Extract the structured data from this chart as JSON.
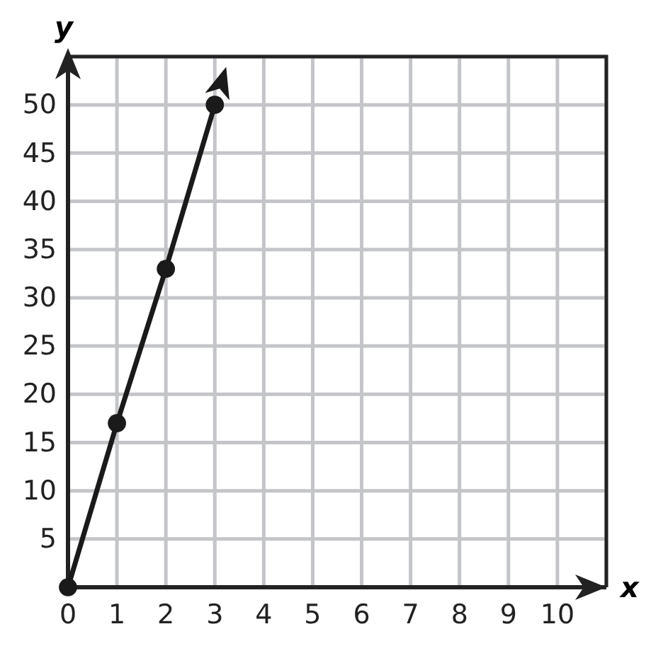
{
  "chart_data": {
    "type": "line",
    "xlabel": "x",
    "ylabel": "y",
    "x": [
      0,
      1,
      2,
      3
    ],
    "series": [
      {
        "color": "#1a1a1a",
        "values": [
          0,
          17,
          33,
          50
        ]
      }
    ],
    "xlim": [
      0,
      11
    ],
    "ylim": [
      0,
      55
    ],
    "xticks": [
      0,
      1,
      2,
      3,
      4,
      5,
      6,
      7,
      8,
      9,
      10,
      {
        "value": 11,
        "label": null
      }
    ],
    "yticks": [
      5,
      10,
      15,
      20,
      25,
      30,
      35,
      40,
      45,
      50,
      {
        "value": 55,
        "label": null
      }
    ],
    "grid": true,
    "marker": "circle",
    "line_style": "solid"
  }
}
